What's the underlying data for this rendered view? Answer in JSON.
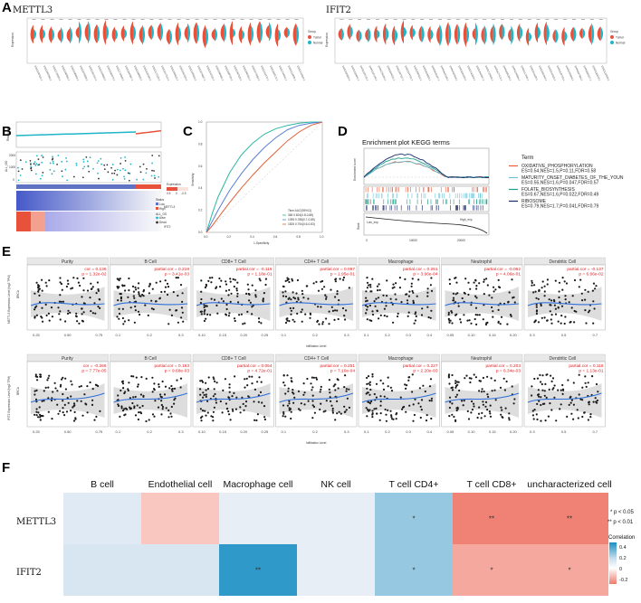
{
  "panels": {
    "A": {
      "label": "A",
      "left": {
        "title": "METTL3",
        "ylabel": "Expression",
        "legend_title": "Group",
        "legend_items": [
          "Tumor",
          "Normal"
        ],
        "n_violins": 30
      },
      "right": {
        "title": "IFIT2",
        "ylabel": "Expression",
        "legend_title": "Group",
        "legend_items": [
          "Tumor",
          "Normal"
        ],
        "n_violins": 30
      }
    },
    "B": {
      "label": "B",
      "top_ylabel": "RiskScore",
      "mid_ylabel": "ALL_OS",
      "mid_axis_values": [
        "2000",
        "1000",
        "0"
      ],
      "heat_rows": [
        "METTL3",
        "IFIT2"
      ],
      "legend_title": "Expression",
      "legend_values": [
        "0.5",
        "0",
        "-0.5"
      ],
      "legend_items": [
        "Status",
        "Low",
        "High",
        "ALL_OS",
        "Alive",
        "Dead"
      ]
    },
    "C": {
      "label": "C",
      "xlabel": "1-Specificity",
      "ylabel": "Sensitivity",
      "x_ticks": [
        "0.0",
        "0.2",
        "0.4",
        "0.6",
        "0.8",
        "1.0"
      ],
      "y_ticks": [
        "0.0",
        "0.2",
        "0.4",
        "0.6",
        "0.8",
        "1.0"
      ],
      "legend_lines": [
        "Time AUC(95%CI)",
        "365 0.824(0.8-0.88)",
        "1095 0.788(0.7-0.85)",
        "1825 0.754(0.6-0.83)"
      ],
      "chart_data": {
        "type": "line",
        "title": "",
        "xlabel": "1-Specificity",
        "ylabel": "Sensitivity",
        "xlim": [
          0,
          1
        ],
        "ylim": [
          0,
          1
        ],
        "series": [
          {
            "name": "365",
            "color": "#2ab7a3",
            "x": [
              0,
              0.05,
              0.1,
              0.2,
              0.3,
              0.4,
              0.5,
              0.6,
              0.7,
              0.8,
              0.9,
              1.0
            ],
            "y": [
              0,
              0.17,
              0.32,
              0.54,
              0.7,
              0.81,
              0.89,
              0.94,
              0.97,
              0.99,
              1.0,
              1.0
            ]
          },
          {
            "name": "1095",
            "color": "#5a7fd6",
            "x": [
              0,
              0.05,
              0.1,
              0.2,
              0.3,
              0.4,
              0.5,
              0.6,
              0.7,
              0.8,
              0.9,
              1.0
            ],
            "y": [
              0,
              0.1,
              0.2,
              0.38,
              0.53,
              0.66,
              0.77,
              0.86,
              0.93,
              0.97,
              0.99,
              1.0
            ]
          },
          {
            "name": "1825",
            "color": "#e0603a",
            "x": [
              0,
              0.05,
              0.1,
              0.2,
              0.3,
              0.4,
              0.5,
              0.6,
              0.7,
              0.8,
              0.9,
              1.0
            ],
            "y": [
              0,
              0.06,
              0.13,
              0.27,
              0.4,
              0.52,
              0.63,
              0.73,
              0.83,
              0.91,
              0.97,
              1.0
            ]
          }
        ]
      }
    },
    "D": {
      "label": "D",
      "title": "Enrichment plot KEGG terms",
      "ylabel_top": "Enrichment score",
      "ylabel_bottom": "Rank",
      "low_label": "Low_exp",
      "high_label": "High_exp",
      "x_ticks": [
        "0",
        "10000",
        "20000"
      ],
      "legend_title": "Term",
      "terms": [
        {
          "name": "OXIDATIVE_PHOSPHORYLATION",
          "stats": "ES=0.54,NES=1.5,P=0.11,FDR=0.58",
          "color": "#f05d3b"
        },
        {
          "name": "MATURITY_ONSET_DIABETES_OF_THE_YOUN",
          "stats": "ES=0.55,NES=1.6,P=0.047,FDR=0.57",
          "color": "#6bc3d6"
        },
        {
          "name": "FOLATE_BIOSYNTHESIS",
          "stats": "ES=0.67,NES=1.6,P=0.022,FDR=0.49",
          "color": "#1b9e8a"
        },
        {
          "name": "RIBOSOME",
          "stats": "ES=0.79,NES=1.7,P=0.041,FDR=0.79",
          "color": "#1a2a6c"
        }
      ]
    },
    "E": {
      "label": "E",
      "xlabel": "Infiltration Level",
      "row_label": "BRCA",
      "cells": [
        "Purity",
        "B Cell",
        "CD8+ T Cell",
        "CD4+ T Cell",
        "Macrophage",
        "Neutrophil",
        "Dendritic Cell"
      ],
      "rows": [
        {
          "ylabel": "METTL3 Expression Level (log2 TPM)",
          "stats": [
            {
              "label": "cor = 0.136",
              "p": "p = 1.32e-02"
            },
            {
              "label": "partial.cor = 0.218",
              "p": "p = 3.41e-03"
            },
            {
              "label": "partial.cor = -0.118",
              "p": "p = 1.18e-01"
            },
            {
              "label": "partial.cor = 0.097",
              "p": "p = 1.95e-01"
            },
            {
              "label": "partial.cor = 0.261",
              "p": "p = 3.96e-04"
            },
            {
              "label": "partial.cor = -0.062",
              "p": "p = 4.06e-01"
            },
            {
              "label": "partial.cor = -0.137",
              "p": "p = 6.66e-02"
            }
          ]
        },
        {
          "ylabel": "IFIT2 Expression Level (log2 TPM)",
          "stats": [
            {
              "label": "cor = -0.266",
              "p": "p = 7.77e-05"
            },
            {
              "label": "partial.cor = 0.193",
              "p": "p = 9.68e-03"
            },
            {
              "label": "partial.cor = 0.054",
              "p": "p = 4.72e-01"
            },
            {
              "label": "partial.cor = 0.251",
              "p": "p = 7.10e-04"
            },
            {
              "label": "partial.cor = 0.227",
              "p": "p = 2.20e-03"
            },
            {
              "label": "partial.cor = 0.203",
              "p": "p = 6.34e-03"
            },
            {
              "label": "partial.cor = 0.118",
              "p": "p = 1.13e-01"
            }
          ]
        }
      ],
      "xticks": [
        [
          "0.25",
          "0.50",
          "0.75"
        ],
        [
          "0.1",
          "0.2",
          "0.3"
        ],
        [
          "0.10",
          "0.15",
          "0.20",
          "0.25"
        ],
        [
          "0.1",
          "0.2",
          "0.3"
        ],
        [
          "0.1",
          "0.2",
          "0.3",
          "0.4"
        ],
        [
          "0.05",
          "0.10",
          "0.15",
          "0.20"
        ],
        [
          "0.3",
          "0.5",
          "0.7"
        ]
      ]
    },
    "F": {
      "label": "F",
      "columns": [
        "B cell",
        "Endothelial cell",
        "Macrophage cell",
        "NK cell",
        "T cell CD4+",
        "T cell CD8+",
        "uncharacterized cell"
      ],
      "rows": [
        "METTL3",
        "IFIT2"
      ],
      "sig_legend": [
        "* p < 0.05",
        "** p < 0.01"
      ],
      "colorbar_title": "Correlation",
      "colorbar_ticks": [
        "0.4",
        "0.2",
        "0",
        "-0.2"
      ],
      "chart_data": {
        "type": "heatmap",
        "x": [
          "B cell",
          "Endothelial cell",
          "Macrophage cell",
          "NK cell",
          "T cell CD4+",
          "T cell CD8+",
          "uncharacterized cell"
        ],
        "y": [
          "METTL3",
          "IFIT2"
        ],
        "values": [
          [
            0.02,
            -0.12,
            0.0,
            0.0,
            0.2,
            -0.3,
            -0.3
          ],
          [
            0.04,
            0.04,
            0.45,
            0.0,
            0.2,
            -0.2,
            -0.2
          ]
        ],
        "significance": [
          [
            "",
            "",
            "",
            "",
            "*",
            "**",
            "**"
          ],
          [
            "",
            "",
            "**",
            "",
            "*",
            "*",
            "*"
          ]
        ],
        "colorbar_range": [
          -0.3,
          0.5
        ]
      }
    }
  }
}
